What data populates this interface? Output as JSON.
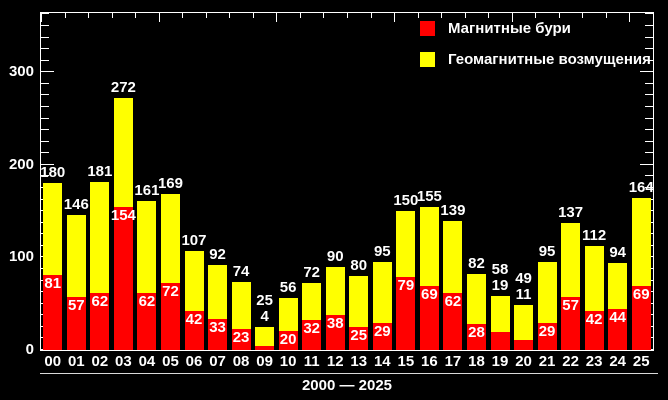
{
  "chart_data": {
    "type": "bar",
    "stacked": true,
    "background": "#000000",
    "text_color": "#ffffff",
    "categories": [
      "00",
      "01",
      "02",
      "03",
      "04",
      "05",
      "06",
      "07",
      "08",
      "09",
      "10",
      "11",
      "12",
      "13",
      "14",
      "15",
      "16",
      "17",
      "18",
      "19",
      "20",
      "21",
      "22",
      "23",
      "24",
      "25"
    ],
    "totals": [
      180,
      146,
      181,
      272,
      161,
      169,
      107,
      92,
      74,
      25,
      56,
      72,
      90,
      80,
      95,
      150,
      155,
      139,
      82,
      58,
      49,
      95,
      137,
      112,
      94,
      164
    ],
    "series": [
      {
        "name": "Магнитные бури",
        "color": "#ff0000",
        "values": [
          81,
          57,
          62,
          154,
          62,
          72,
          42,
          33,
          23,
          4,
          20,
          32,
          38,
          25,
          29,
          79,
          69,
          62,
          28,
          19,
          11,
          29,
          57,
          42,
          44,
          69
        ]
      },
      {
        "name": "Геомагнитные возмущения",
        "color": "#ffff00",
        "note": "top stacked segment; height = total minus storms"
      }
    ],
    "legend_position": "top-right",
    "xlabel": "2000 — 2025",
    "ylabel": "",
    "ylim": [
      0,
      364
    ],
    "yticks": [
      0,
      100,
      200,
      300
    ],
    "y_minor_step": 12.5,
    "x_major_tick_every": 5,
    "grid": false
  }
}
